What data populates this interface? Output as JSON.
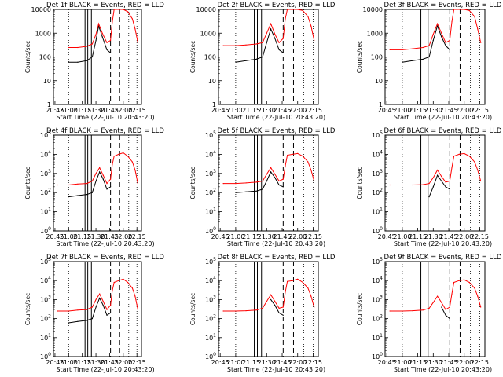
{
  "x_tick_labels": [
    "20:45",
    "21:00",
    "21:15",
    "21:30",
    "21:45",
    "22:00",
    "22:15"
  ],
  "xlabel": "Start Time (22-Jul-10 20:43:20)",
  "ylabel": "Counts/sec",
  "colors": {
    "events": "#000000",
    "lld": "#ff0000",
    "axes": "#000000"
  },
  "chart_data": [
    {
      "type": "line",
      "title": "Det 1f BLACK = Events, RED = LLD",
      "y_scale": "log",
      "ylim": [
        1,
        10000
      ],
      "y_tick_labels": [
        "1",
        "10",
        "100",
        "1000",
        "10000"
      ],
      "x_time_range": [
        "20:43:20",
        "22:20:00"
      ],
      "x": [
        "21:00",
        "21:10",
        "21:20",
        "21:26",
        "21:30",
        "21:33",
        "21:37",
        "21:42",
        "21:46",
        "21:48",
        "21:50",
        "21:55",
        "22:00",
        "22:05",
        "22:10",
        "22:13",
        "22:16"
      ],
      "series": [
        {
          "values": [
            60,
            60,
            70,
            100,
            500,
            2000,
            700,
            200,
            150,
            null,
            null,
            null,
            null,
            null,
            null,
            null,
            null
          ]
        },
        {
          "values": [
            250,
            250,
            280,
            350,
            900,
            2500,
            1000,
            400,
            500,
            3000,
            10000,
            10000,
            10000,
            8000,
            4000,
            1500,
            400
          ]
        }
      ]
    },
    {
      "type": "line",
      "title": "Det 2f BLACK = Events, RED = LLD",
      "y_scale": "log",
      "ylim": [
        1,
        10000
      ],
      "y_tick_labels": [
        "1",
        "10",
        "100",
        "1000",
        "10000"
      ],
      "x_time_range": [
        "20:43:20",
        "22:20:00"
      ],
      "x": [
        "20:48",
        "21:00",
        "21:10",
        "21:20",
        "21:26",
        "21:30",
        "21:34",
        "21:38",
        "21:42",
        "21:46",
        "21:48",
        "21:50",
        "21:55",
        "22:00",
        "22:05",
        "22:10",
        "22:13",
        "22:16"
      ],
      "series": [
        {
          "values": [
            null,
            60,
            70,
            80,
            100,
            400,
            1500,
            600,
            200,
            150,
            null,
            null,
            null,
            null,
            null,
            null,
            null,
            null
          ]
        },
        {
          "values": [
            300,
            300,
            320,
            350,
            400,
            1000,
            2500,
            900,
            400,
            600,
            4000,
            10000,
            10000,
            10000,
            9000,
            5000,
            2000,
            500
          ]
        }
      ]
    },
    {
      "type": "line",
      "title": "Det 3f BLACK = Events, RED = LLD",
      "y_scale": "log",
      "ylim": [
        1,
        10000
      ],
      "y_tick_labels": [
        "1",
        "10",
        "100",
        "1000",
        "10000"
      ],
      "x_time_range": [
        "20:43:20",
        "22:20:00"
      ],
      "x": [
        "20:48",
        "21:00",
        "21:10",
        "21:20",
        "21:26",
        "21:30",
        "21:34",
        "21:38",
        "21:42",
        "21:46",
        "21:48",
        "21:50",
        "21:55",
        "22:00",
        "22:05",
        "22:10",
        "22:13",
        "22:16"
      ],
      "series": [
        {
          "values": [
            null,
            60,
            70,
            80,
            100,
            500,
            2000,
            700,
            300,
            200,
            null,
            null,
            null,
            null,
            null,
            null,
            null,
            null
          ]
        },
        {
          "values": [
            200,
            200,
            220,
            250,
            300,
            900,
            2500,
            1000,
            400,
            500,
            3000,
            10000,
            10000,
            10000,
            9000,
            5000,
            1500,
            400
          ]
        }
      ]
    },
    {
      "type": "line",
      "title": "Det 4f BLACK = Events, RED = LLD",
      "y_scale": "log",
      "ylim": [
        1,
        100000
      ],
      "y_tick_labels": [
        "10^0",
        "10^1",
        "10^2",
        "10^3",
        "10^4",
        "10^5"
      ],
      "x_time_range": [
        "20:43:20",
        "22:20:00"
      ],
      "x": [
        "20:48",
        "21:00",
        "21:10",
        "21:20",
        "21:26",
        "21:30",
        "21:34",
        "21:38",
        "21:42",
        "21:46",
        "21:48",
        "21:50",
        "21:55",
        "22:00",
        "22:05",
        "22:10",
        "22:13",
        "22:16"
      ],
      "series": [
        {
          "values": [
            null,
            60,
            70,
            80,
            100,
            400,
            1200,
            500,
            150,
            200,
            null,
            null,
            null,
            null,
            null,
            null,
            null,
            null
          ]
        },
        {
          "values": [
            250,
            250,
            280,
            300,
            400,
            1000,
            2000,
            800,
            300,
            500,
            3000,
            8000,
            10000,
            12000,
            8000,
            4000,
            1500,
            300
          ]
        }
      ]
    },
    {
      "type": "line",
      "title": "Det 5f BLACK = Events, RED = LLD",
      "y_scale": "log",
      "ylim": [
        1,
        100000
      ],
      "y_tick_labels": [
        "10^0",
        "10^1",
        "10^2",
        "10^3",
        "10^4",
        "10^5"
      ],
      "x_time_range": [
        "20:43:20",
        "22:20:00"
      ],
      "x": [
        "20:48",
        "21:00",
        "21:10",
        "21:20",
        "21:26",
        "21:30",
        "21:34",
        "21:38",
        "21:42",
        "21:46",
        "21:48",
        "21:50",
        "21:55",
        "22:00",
        "22:05",
        "22:10",
        "22:13",
        "22:16"
      ],
      "series": [
        {
          "values": [
            null,
            100,
            110,
            120,
            150,
            400,
            1200,
            600,
            250,
            200,
            null,
            null,
            null,
            null,
            null,
            null,
            null,
            null
          ]
        },
        {
          "values": [
            300,
            300,
            320,
            350,
            400,
            900,
            2000,
            900,
            400,
            500,
            2500,
            9000,
            10000,
            11000,
            8000,
            4000,
            1500,
            400
          ]
        }
      ]
    },
    {
      "type": "line",
      "title": "Det 6f BLACK = Events, RED = LLD",
      "y_scale": "log",
      "ylim": [
        1,
        100000
      ],
      "y_tick_labels": [
        "10^0",
        "10^1",
        "10^2",
        "10^3",
        "10^4",
        "10^5"
      ],
      "x_time_range": [
        "20:43:20",
        "22:20:00"
      ],
      "x": [
        "20:48",
        "21:00",
        "21:10",
        "21:20",
        "21:26",
        "21:30",
        "21:34",
        "21:38",
        "21:42",
        "21:46",
        "21:48",
        "21:50",
        "21:55",
        "22:00",
        "22:05",
        "22:10",
        "22:13",
        "22:16"
      ],
      "series": [
        {
          "values": [
            null,
            null,
            null,
            null,
            60,
            200,
            800,
            400,
            200,
            150,
            null,
            null,
            null,
            null,
            null,
            null,
            null,
            null
          ]
        },
        {
          "values": [
            250,
            250,
            250,
            260,
            300,
            600,
            1500,
            700,
            350,
            400,
            2000,
            8000,
            10000,
            11000,
            8000,
            4000,
            1500,
            400
          ]
        }
      ]
    },
    {
      "type": "line",
      "title": "Det 7f BLACK = Events, RED = LLD",
      "y_scale": "log",
      "ylim": [
        1,
        100000
      ],
      "y_tick_labels": [
        "10^0",
        "10^1",
        "10^2",
        "10^3",
        "10^4",
        "10^5"
      ],
      "x_time_range": [
        "20:43:20",
        "22:20:00"
      ],
      "x": [
        "20:48",
        "21:00",
        "21:10",
        "21:20",
        "21:26",
        "21:30",
        "21:34",
        "21:38",
        "21:42",
        "21:46",
        "21:48",
        "21:50",
        "21:55",
        "22:00",
        "22:05",
        "22:10",
        "22:13",
        "22:16"
      ],
      "series": [
        {
          "values": [
            null,
            60,
            70,
            80,
            100,
            400,
            1200,
            500,
            150,
            200,
            null,
            null,
            null,
            null,
            null,
            null,
            null,
            null
          ]
        },
        {
          "values": [
            250,
            250,
            280,
            300,
            400,
            1000,
            2000,
            800,
            300,
            500,
            3000,
            8000,
            10000,
            12000,
            8000,
            4000,
            1500,
            300
          ]
        }
      ]
    },
    {
      "type": "line",
      "title": "Det 8f BLACK = Events, RED = LLD",
      "y_scale": "log",
      "ylim": [
        1,
        100000
      ],
      "y_tick_labels": [
        "10^0",
        "10^1",
        "10^2",
        "10^3",
        "10^4",
        "10^5"
      ],
      "x_time_range": [
        "20:43:20",
        "22:20:00"
      ],
      "x": [
        "20:48",
        "21:00",
        "21:10",
        "21:20",
        "21:26",
        "21:30",
        "21:34",
        "21:38",
        "21:42",
        "21:46",
        "21:48",
        "21:50",
        "21:55",
        "22:00",
        "22:05",
        "22:10",
        "22:13",
        "22:16"
      ],
      "series": [
        {
          "values": [
            null,
            null,
            null,
            null,
            null,
            null,
            1000,
            500,
            200,
            150,
            null,
            null,
            null,
            null,
            null,
            null,
            null,
            null
          ]
        },
        {
          "values": [
            250,
            250,
            260,
            280,
            350,
            800,
            1800,
            800,
            350,
            400,
            2500,
            9000,
            10000,
            12000,
            8000,
            4000,
            1500,
            400
          ]
        }
      ]
    },
    {
      "type": "line",
      "title": "Det 9f BLACK = Events, RED = LLD",
      "y_scale": "log",
      "ylim": [
        1,
        100000
      ],
      "y_tick_labels": [
        "10^0",
        "10^1",
        "10^2",
        "10^3",
        "10^4",
        "10^5"
      ],
      "x_time_range": [
        "20:43:20",
        "22:20:00"
      ],
      "x": [
        "20:48",
        "21:00",
        "21:10",
        "21:20",
        "21:26",
        "21:30",
        "21:34",
        "21:38",
        "21:42",
        "21:46",
        "21:48",
        "21:50",
        "21:55",
        "22:00",
        "22:05",
        "22:10",
        "22:13",
        "22:16"
      ],
      "series": [
        {
          "values": [
            null,
            null,
            null,
            null,
            null,
            null,
            null,
            400,
            150,
            100,
            null,
            null,
            null,
            null,
            null,
            null,
            null,
            null
          ]
        },
        {
          "values": [
            250,
            250,
            260,
            280,
            350,
            700,
            1500,
            700,
            300,
            400,
            2000,
            8000,
            10000,
            11000,
            8000,
            4000,
            1500,
            400
          ]
        }
      ]
    }
  ],
  "vertical_markers": {
    "dotted": [
      "21:00",
      "22:06",
      "22:15"
    ],
    "solid": [
      "21:18",
      "21:21",
      "21:25"
    ],
    "dashed": [
      "21:46",
      "21:56"
    ]
  }
}
